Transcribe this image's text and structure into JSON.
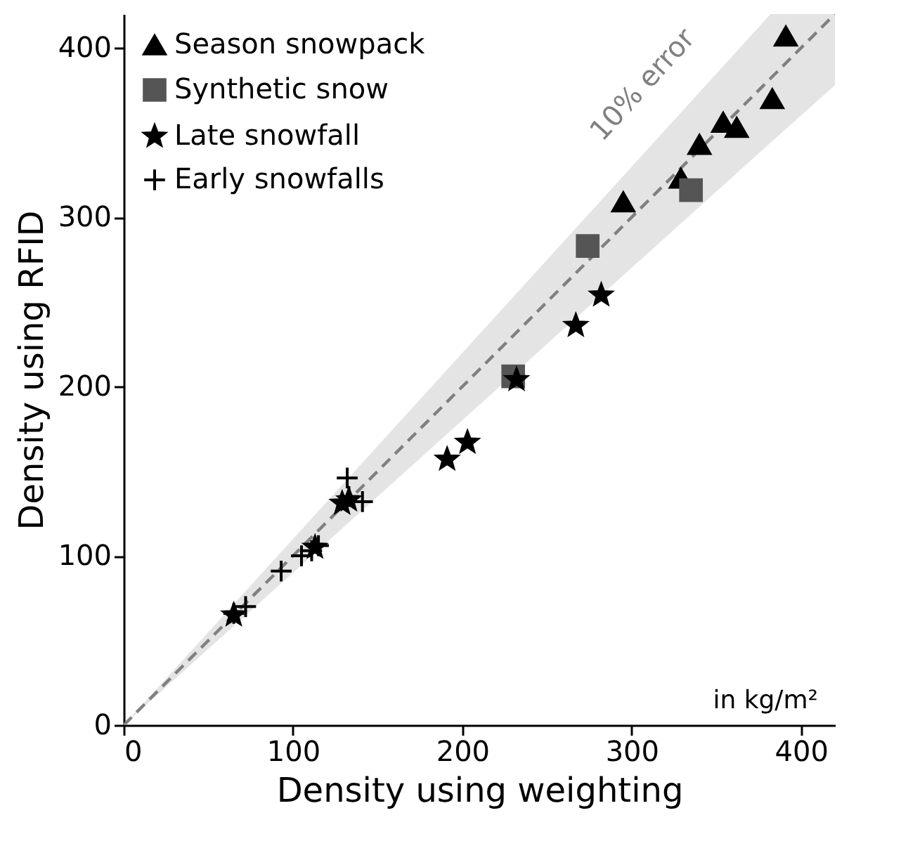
{
  "chart_data": {
    "type": "scatter",
    "xlabel": "Density using weighting",
    "ylabel": "Density using RFID",
    "xlim": [
      0,
      420
    ],
    "ylim": [
      0,
      420
    ],
    "xticks": [
      0,
      100,
      200,
      300,
      400
    ],
    "yticks": [
      0,
      100,
      200,
      300,
      400
    ],
    "grid": false,
    "legend": "top left",
    "annotations": [
      "10% error",
      "in kg/m²"
    ],
    "series": [
      {
        "type": "line",
        "x": [
          0,
          382,
          420
        ],
        "values": [
          0,
          382,
          420
        ],
        "lower": [
          0,
          344,
          378
        ],
        "upper": [
          0,
          420,
          420
        ],
        "color": "#808080",
        "line_style": "dashed",
        "marker": "none"
      },
      {
        "name": "Season snowpack",
        "color": "#000000",
        "marker": "triangle",
        "x": [
          391,
          383,
          354,
          362,
          340,
          329,
          295
        ],
        "values": [
          407,
          370,
          356,
          353,
          343,
          323,
          309
        ]
      },
      {
        "name": "Synthetic snow",
        "color": "#555555",
        "marker": "square",
        "x": [
          335,
          274,
          230
        ],
        "values": [
          316,
          283,
          206
        ]
      },
      {
        "name": "Late snowfall",
        "color": "#000000",
        "marker": "star",
        "x": [
          282,
          267,
          232,
          203,
          191,
          129,
          133,
          113,
          65
        ],
        "values": [
          254,
          236,
          204,
          167,
          157,
          131,
          133,
          105,
          65
        ]
      },
      {
        "name": "Early snowfalls",
        "color": "#000000",
        "marker": "cross",
        "x": [
          132,
          141,
          133,
          115,
          105,
          93,
          72,
          65,
          111
        ],
        "values": [
          146,
          132,
          135,
          106,
          100,
          91,
          70,
          66,
          103
        ]
      }
    ]
  }
}
